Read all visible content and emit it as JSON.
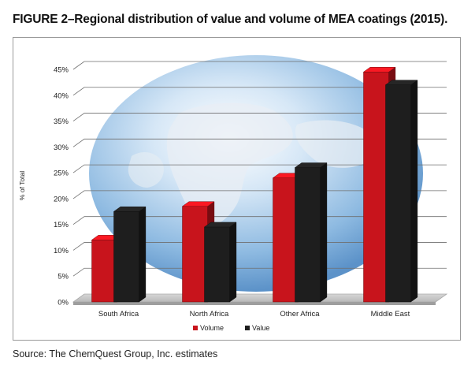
{
  "figure": {
    "title": "FIGURE 2–Regional distribution of value and volume of MEA coatings (2015).",
    "source": "Source: The ChemQuest Group, Inc. estimates"
  },
  "colors": {
    "volume": "#c8141c",
    "value": "#1e1e1e"
  },
  "chart_data": {
    "type": "bar",
    "title": "",
    "xlabel": "",
    "ylabel": "% of Total",
    "categories": [
      "South Africa",
      "North Africa",
      "Other Africa",
      "Middle East"
    ],
    "series": [
      {
        "name": "Volume",
        "values": [
          12,
          18.5,
          24,
          44.5
        ]
      },
      {
        "name": "Value",
        "values": [
          17.5,
          14.5,
          26,
          42
        ]
      }
    ],
    "ylim": [
      0,
      45
    ],
    "yticks": [
      "0%",
      "5%",
      "10%",
      "15%",
      "20%",
      "25%",
      "30%",
      "35%",
      "40%",
      "45%"
    ],
    "grid": true,
    "legend": "bottom",
    "style": "3d-bars"
  }
}
